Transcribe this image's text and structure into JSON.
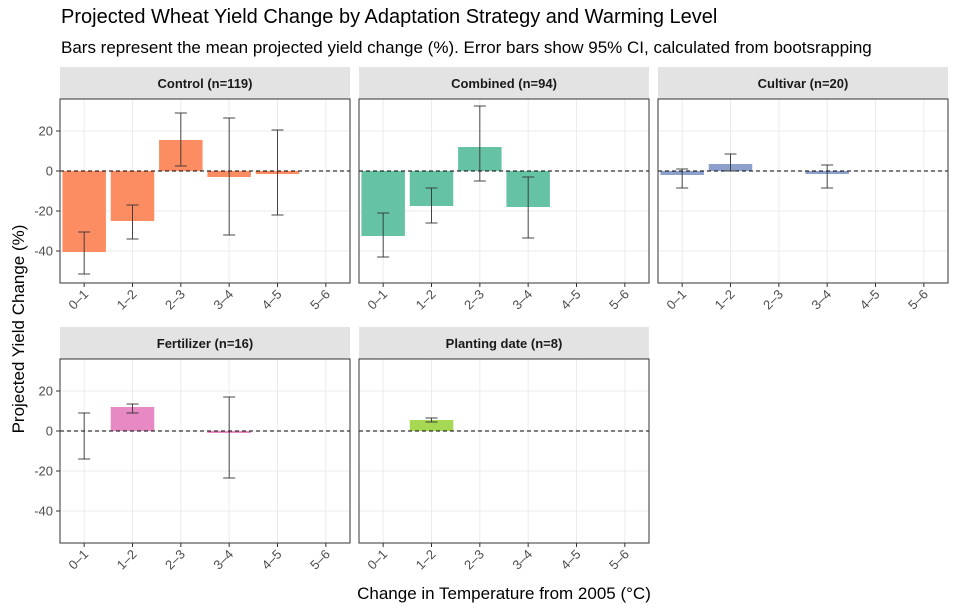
{
  "chart_data": {
    "type": "bar",
    "title": "Projected Wheat Yield Change by Adaptation Strategy and Warming Level",
    "subtitle": "Bars represent the mean projected yield change (%). Error bars show 95% CI, calculated from bootsrapping",
    "xlabel": "Change in Temperature from 2005 (°C)",
    "ylabel": "Projected Yield Change (%)",
    "categories": [
      "0–1",
      "1–2",
      "2–3",
      "3–4",
      "4–5",
      "5–6"
    ],
    "ylim": [
      -56,
      36
    ],
    "yticks": [
      20,
      0,
      -20,
      -40
    ],
    "ytick_labels": [
      "20",
      "0",
      "-20",
      "-40"
    ],
    "grid": true,
    "reference_line": 0,
    "facets": [
      {
        "label": "Control (n=119)",
        "color": "#FC8D62",
        "values": [
          -40.5,
          -25,
          15.5,
          -3,
          -1.5,
          null
        ],
        "ci_low": [
          -51.5,
          -34,
          2.5,
          -32,
          -22,
          null
        ],
        "ci_high": [
          -30.5,
          -17,
          29,
          26.5,
          20.5,
          null
        ]
      },
      {
        "label": "Combined (n=94)",
        "color": "#66C2A5",
        "values": [
          -32.5,
          -17.5,
          12,
          -18,
          null,
          null
        ],
        "ci_low": [
          -43,
          -26,
          -5,
          -33.5,
          null,
          null
        ],
        "ci_high": [
          -21,
          -8.5,
          32.5,
          -3,
          null,
          null
        ]
      },
      {
        "label": "Cultivar (n=20)",
        "color": "#8DA0CB",
        "values": [
          -2,
          3.5,
          null,
          -1.5,
          null,
          null
        ],
        "ci_low": [
          -8.5,
          0,
          null,
          -8.5,
          null,
          null
        ],
        "ci_high": [
          1,
          8.5,
          null,
          3,
          null,
          null
        ]
      },
      {
        "label": "Fertilizer (n=16)",
        "color": "#E78AC3",
        "values": [
          null,
          12,
          null,
          -1,
          null,
          null
        ],
        "ci_low": [
          -14,
          9,
          null,
          -23.5,
          null,
          null
        ],
        "ci_high": [
          9,
          13.5,
          null,
          17,
          null,
          null
        ]
      },
      {
        "label": "Planting date (n=8)",
        "color": "#A6D854",
        "values": [
          null,
          5.5,
          null,
          null,
          null,
          null
        ],
        "ci_low": [
          null,
          4.5,
          null,
          null,
          null,
          null
        ],
        "ci_high": [
          null,
          6.5,
          null,
          null,
          null,
          null
        ]
      }
    ]
  }
}
